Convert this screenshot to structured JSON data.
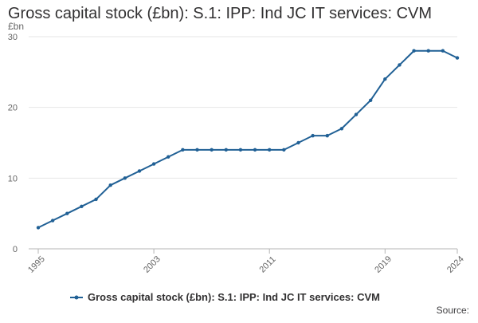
{
  "chart_data": {
    "type": "line",
    "title": "Gross capital stock (£bn): S.1: IPP: Ind JC IT services: CVM",
    "ylabel": "£bn",
    "xlabel": "",
    "x": [
      1995,
      1996,
      1997,
      1998,
      1999,
      2000,
      2001,
      2002,
      2003,
      2004,
      2005,
      2006,
      2007,
      2008,
      2009,
      2010,
      2011,
      2012,
      2013,
      2014,
      2015,
      2016,
      2017,
      2018,
      2019,
      2020,
      2021,
      2022,
      2023,
      2024
    ],
    "series": [
      {
        "name": "Gross capital stock (£bn): S.1: IPP: Ind JC IT services: CVM",
        "values": [
          3,
          4,
          5,
          6,
          7,
          9,
          10,
          11,
          12,
          13,
          14,
          14,
          14,
          14,
          14,
          14,
          14,
          14,
          15,
          16,
          16,
          17,
          19,
          21,
          24,
          26,
          28,
          28,
          28,
          27
        ]
      }
    ],
    "xlim": [
      1995,
      2024
    ],
    "ylim": [
      0,
      30
    ],
    "x_ticks": [
      "1995",
      "2003",
      "2011",
      "2019",
      "2024"
    ],
    "y_ticks": [
      "0",
      "10",
      "20",
      "30"
    ],
    "legend": "bottom",
    "grid": true,
    "color": "#206095",
    "source_label": "Source:"
  }
}
